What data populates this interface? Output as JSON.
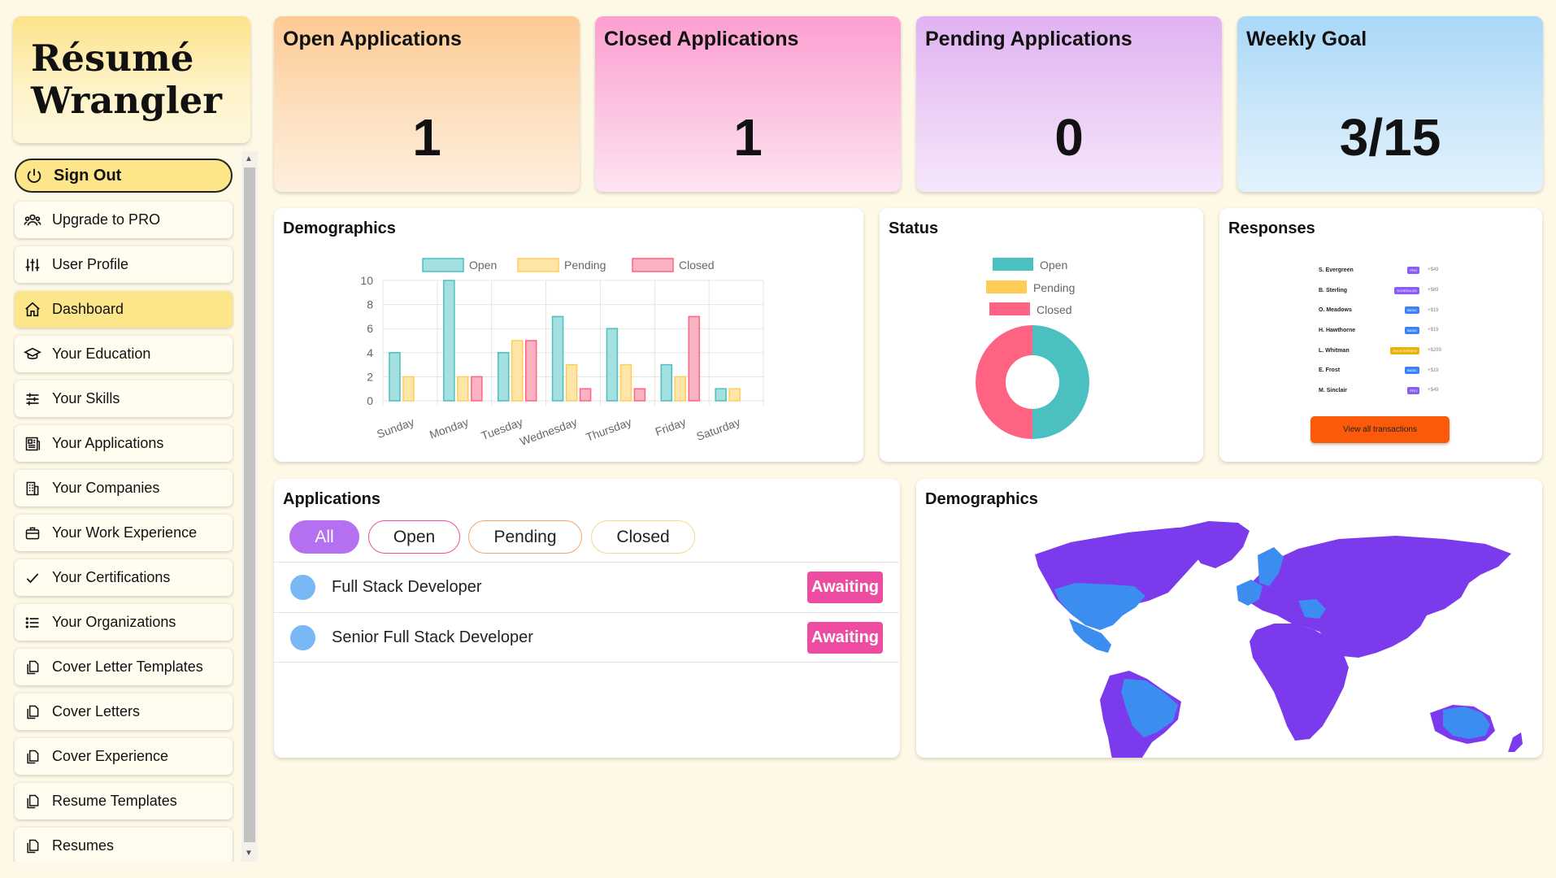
{
  "brand": {
    "line1": "Résumé",
    "line2": "Wrangler"
  },
  "nav": [
    {
      "label": "Sign Out",
      "icon": "power-icon"
    },
    {
      "label": "Upgrade to PRO",
      "icon": "users-icon"
    },
    {
      "label": "User Profile",
      "icon": "sliders-icon"
    },
    {
      "label": "Dashboard",
      "icon": "home-icon"
    },
    {
      "label": "Your Education",
      "icon": "graduation-cap-icon"
    },
    {
      "label": "Your Skills",
      "icon": "settings-sliders-icon"
    },
    {
      "label": "Your Applications",
      "icon": "newspaper-icon"
    },
    {
      "label": "Your Companies",
      "icon": "building-icon"
    },
    {
      "label": "Your Work Experience",
      "icon": "briefcase-icon"
    },
    {
      "label": "Your Certifications",
      "icon": "check-icon"
    },
    {
      "label": "Your Organizations",
      "icon": "list-icon"
    },
    {
      "label": "Cover Letter Templates",
      "icon": "copy-icon"
    },
    {
      "label": "Cover Letters",
      "icon": "copy-icon"
    },
    {
      "label": "Cover Experience",
      "icon": "copy-icon"
    },
    {
      "label": "Resume Templates",
      "icon": "copy-icon"
    },
    {
      "label": "Resumes",
      "icon": "copy-icon"
    }
  ],
  "stats": {
    "open": {
      "title": "Open Applications",
      "value": "1"
    },
    "closed": {
      "title": "Closed Applications",
      "value": "1"
    },
    "pending": {
      "title": "Pending Applications",
      "value": "0"
    },
    "goal": {
      "title": "Weekly Goal",
      "value": "3/15"
    }
  },
  "demographics_chart": {
    "title": "Demographics",
    "chart_data": {
      "type": "bar",
      "categories": [
        "Sunday",
        "Monday",
        "Tuesday",
        "Wednesday",
        "Thursday",
        "Friday",
        "Saturday"
      ],
      "series": [
        {
          "name": "Open",
          "values": [
            4,
            10,
            4,
            7,
            6,
            3,
            1
          ],
          "fill": "#a3e0df",
          "stroke": "#4bc0c0"
        },
        {
          "name": "Pending",
          "values": [
            2,
            2,
            5,
            3,
            3,
            2,
            1
          ],
          "fill": "#fde6a8",
          "stroke": "#ffcd56"
        },
        {
          "name": "Closed",
          "values": [
            0,
            2,
            5,
            1,
            1,
            7,
            0
          ],
          "fill": "#fcb3c1",
          "stroke": "#ff6384"
        }
      ],
      "yticks": [
        "0",
        "2",
        "4",
        "6",
        "8",
        "10"
      ],
      "ylim": [
        0,
        10
      ],
      "legend": "top"
    }
  },
  "status_chart": {
    "title": "Status",
    "chart_data": {
      "type": "pie",
      "labels": [
        "Open",
        "Pending",
        "Closed"
      ],
      "values": [
        1,
        0,
        1
      ],
      "colors": [
        "#4bc0c0",
        "#ffcd56",
        "#ff6384"
      ],
      "legend": "top"
    }
  },
  "responses": {
    "title": "Responses",
    "rows": [
      {
        "name": "S. Evergreen",
        "tag": "PRO",
        "tag_color": "#8b5cf6",
        "amount": "+$49"
      },
      {
        "name": "B. Sterling",
        "tag": "SCHEDULED",
        "tag_color": "#8b5cf6",
        "amount": "+$89"
      },
      {
        "name": "O. Meadows",
        "tag": "BASIC",
        "tag_color": "#3b82f6",
        "amount": "+$19"
      },
      {
        "name": "H. Hawthorne",
        "tag": "BASIC",
        "tag_color": "#3b82f6",
        "amount": "+$19"
      },
      {
        "name": "L. Whitman",
        "tag": "2nd INTERVIEW",
        "tag_color": "#eab308",
        "amount": "+$299"
      },
      {
        "name": "E. Frost",
        "tag": "BASIC",
        "tag_color": "#3b82f6",
        "amount": "+$19"
      },
      {
        "name": "M. Sinclair",
        "tag": "PRO",
        "tag_color": "#8b5cf6",
        "amount": "+$49"
      }
    ],
    "button_label": "View all transactions"
  },
  "applications": {
    "title": "Applications",
    "filters": [
      "All",
      "Open",
      "Pending",
      "Closed"
    ],
    "items": [
      {
        "title": "Full Stack Developer",
        "status": "Awaiting"
      },
      {
        "title": "Senior Full Stack Developer",
        "status": "Awaiting"
      }
    ]
  },
  "map": {
    "title": "Demographics",
    "land_color": "#7c3aed",
    "highlight_color": "#3b8df0"
  }
}
